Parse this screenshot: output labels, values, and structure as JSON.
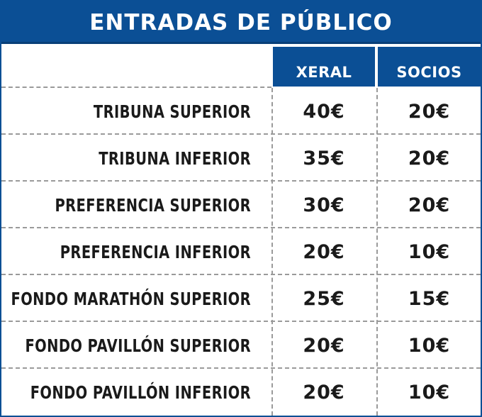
{
  "title": "ENTRADAS DE PÚBLICO",
  "columns": {
    "xeral": "XERAL",
    "socios": "SOCIOS"
  },
  "rows": [
    {
      "label": "TRIBUNA SUPERIOR",
      "xeral": "40€",
      "socios": "20€"
    },
    {
      "label": "TRIBUNA INFERIOR",
      "xeral": "35€",
      "socios": "20€"
    },
    {
      "label": "PREFERENCIA SUPERIOR",
      "xeral": "30€",
      "socios": "20€"
    },
    {
      "label": "PREFERENCIA INFERIOR",
      "xeral": "20€",
      "socios": "10€"
    },
    {
      "label": "FONDO MARATHÓN SUPERIOR",
      "xeral": "25€",
      "socios": "15€"
    },
    {
      "label": "FONDO PAVILLÓN SUPERIOR",
      "xeral": "20€",
      "socios": "10€"
    },
    {
      "label": "FONDO PAVILLÓN INFERIOR",
      "xeral": "20€",
      "socios": "10€"
    }
  ],
  "colors": {
    "accent": "#0b4f95",
    "text": "#1a1a1a",
    "grid": "#9a9a9a"
  }
}
